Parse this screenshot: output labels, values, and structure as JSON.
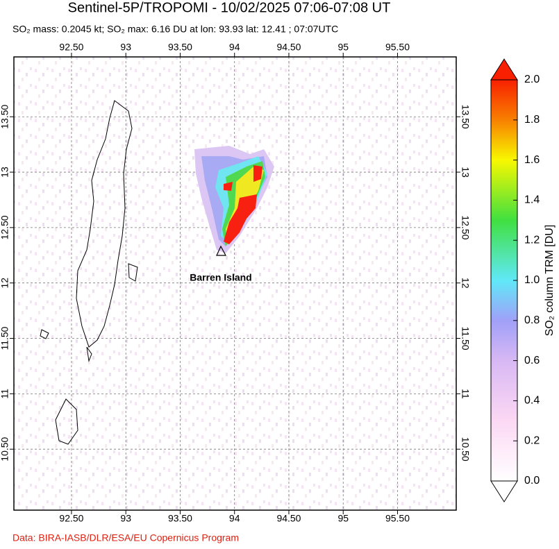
{
  "chart_data": {
    "type": "map",
    "title": "Sentinel-5P/TROPOMI - 10/02/2025 07:06-07:08 UT",
    "subtitle": "SO₂ mass: 0.2045 kt; SO₂ max: 6.16 DU at lon: 93.93 lat: 12.41 ; 07:07UTC",
    "annotation": "Barren Island",
    "credit": "Data: BIRA-IASB/DLR/ESA/EU Copernicus Program",
    "xlim": [
      91.97,
      96.04
    ],
    "ylim": [
      9.95,
      14.04
    ],
    "xticks": [
      {
        "value": 92.5,
        "label": "92.50"
      },
      93,
      {
        "value": 93.5,
        "label": "93.50"
      },
      94,
      {
        "value": 94.5,
        "label": "94.50"
      },
      95,
      {
        "value": 95.5,
        "label": "95.50"
      }
    ],
    "yticks": [
      {
        "value": 10.5,
        "label": "10.50"
      },
      11,
      {
        "value": 11.5,
        "label": "11.50"
      },
      12,
      {
        "value": 12.5,
        "label": "12.50"
      },
      13,
      {
        "value": 13.5,
        "label": "13.50"
      }
    ],
    "grid": true,
    "colorbar": {
      "label": "SO₂ column TRM [DU]",
      "lim": [
        0,
        2
      ],
      "ticks": [
        {
          "value": 0,
          "label": "0.0"
        },
        0.2,
        0.4,
        0.6,
        0.8,
        {
          "value": 1,
          "label": "1.0"
        },
        1.2,
        1.4,
        1.6,
        1.8,
        {
          "value": 2,
          "label": "2.0"
        }
      ]
    }
  }
}
